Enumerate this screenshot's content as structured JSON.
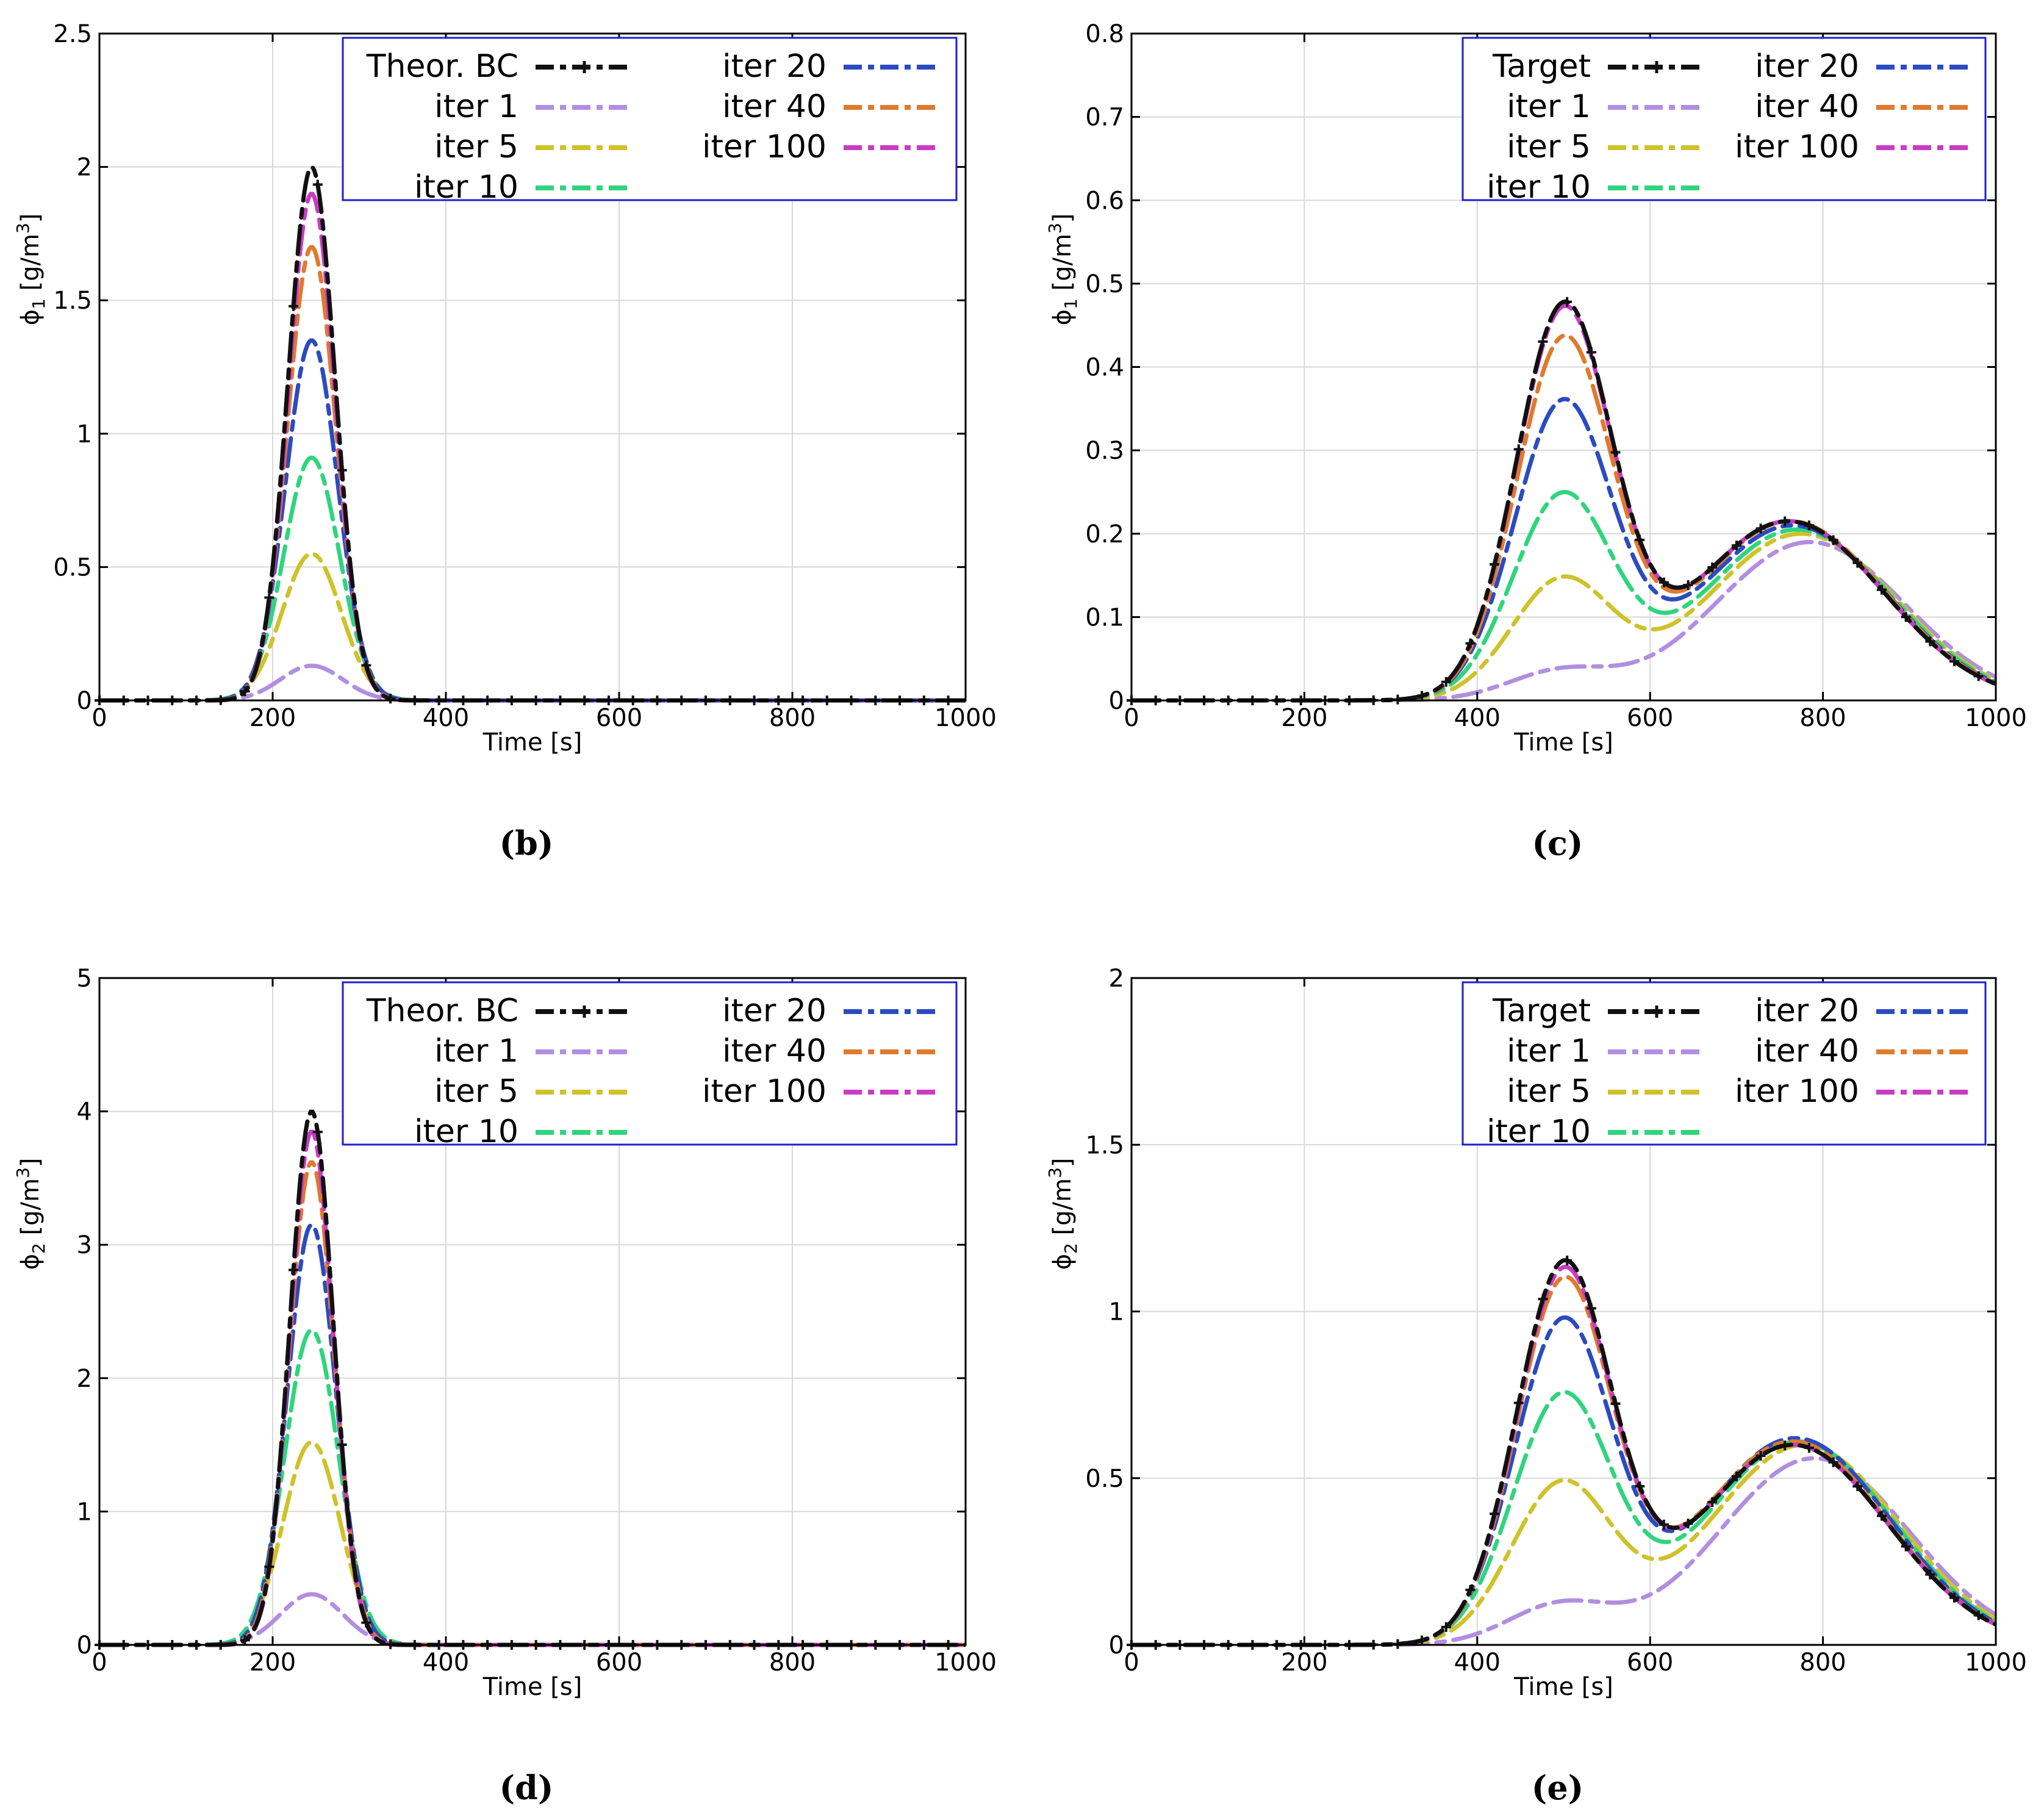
{
  "colors": {
    "theor": "#111111",
    "iter1": "#b28ee0",
    "iter5": "#cfc22a",
    "iter10": "#2fd57d",
    "iter20": "#2b4bc0",
    "iter40": "#e07a2c",
    "iter100": "#c93cc3",
    "legend_border": "#1f1fd0",
    "grid": "#d8d8d8",
    "axis": "#000000"
  },
  "chart_data": [
    {
      "id": "b",
      "type": "line",
      "caption": "(b)",
      "xlabel": "Time [s]",
      "ylabel_main": "ϕ",
      "ylabel_sub": "1",
      "ylabel_unit": " [g/m",
      "ylabel_sup": "3",
      "ylabel_close": "]",
      "xlim": [
        0,
        1000
      ],
      "ylim": [
        0,
        2.5
      ],
      "xticks": [
        0,
        200,
        400,
        600,
        800,
        1000
      ],
      "xtick_labels": [
        "0",
        "200",
        "400",
        "600",
        "800",
        "1000"
      ],
      "yticks": [
        0,
        0.5,
        1,
        1.5,
        2,
        2.5
      ],
      "ytick_labels": [
        "0",
        "0.5",
        "1",
        "1.5",
        "2",
        "2.5"
      ],
      "legend": [
        "Theor. BC",
        "iter 1",
        "iter 5",
        "iter 10",
        "iter 20",
        "iter 40",
        "iter 100"
      ],
      "series": [
        {
          "name": "Theor. BC",
          "key": "theor",
          "markers": true,
          "peaks": [
            {
              "center": 245,
              "amp": 2.0,
              "sigma": 27
            }
          ]
        },
        {
          "name": "iter 1",
          "key": "iter1",
          "peaks": [
            {
              "center": 245,
              "amp": 0.13,
              "sigma": 36
            }
          ]
        },
        {
          "name": "iter 5",
          "key": "iter5",
          "peaks": [
            {
              "center": 245,
              "amp": 0.55,
              "sigma": 34
            }
          ]
        },
        {
          "name": "iter 10",
          "key": "iter10",
          "peaks": [
            {
              "center": 245,
              "amp": 0.91,
              "sigma": 32
            }
          ]
        },
        {
          "name": "iter 20",
          "key": "iter20",
          "peaks": [
            {
              "center": 245,
              "amp": 1.35,
              "sigma": 30
            }
          ]
        },
        {
          "name": "iter 40",
          "key": "iter40",
          "peaks": [
            {
              "center": 245,
              "amp": 1.7,
              "sigma": 28
            }
          ]
        },
        {
          "name": "iter 100",
          "key": "iter100",
          "peaks": [
            {
              "center": 245,
              "amp": 1.9,
              "sigma": 27
            }
          ]
        }
      ]
    },
    {
      "id": "c",
      "type": "line",
      "caption": "(c)",
      "xlabel": "Time [s]",
      "ylabel_main": "ϕ",
      "ylabel_sub": "1",
      "ylabel_unit": " [g/m",
      "ylabel_sup": "3",
      "ylabel_close": "]",
      "xlim": [
        0,
        1000
      ],
      "ylim": [
        0,
        0.8
      ],
      "xticks": [
        0,
        200,
        400,
        600,
        800,
        1000
      ],
      "xtick_labels": [
        "0",
        "200",
        "400",
        "600",
        "800",
        "1000"
      ],
      "yticks": [
        0,
        0.1,
        0.2,
        0.3,
        0.4,
        0.5,
        0.6,
        0.7,
        0.8
      ],
      "ytick_labels": [
        "0",
        "0.1",
        "0.2",
        "0.3",
        "0.4",
        "0.5",
        "0.6",
        "0.7",
        "0.8"
      ],
      "legend": [
        "Target",
        "iter 1",
        "iter 5",
        "iter 10",
        "iter 20",
        "iter 40",
        "iter 100"
      ],
      "series": [
        {
          "name": "Target",
          "key": "theor",
          "markers": true,
          "peaks": [
            {
              "center": 500,
              "amp": 0.465,
              "sigma": 55
            },
            {
              "center": 760,
              "amp": 0.215,
              "sigma": 110
            }
          ]
        },
        {
          "name": "iter 1",
          "key": "iter1",
          "peaks": [
            {
              "center": 495,
              "amp": 0.033,
              "sigma": 60
            },
            {
              "center": 785,
              "amp": 0.19,
              "sigma": 110
            }
          ]
        },
        {
          "name": "iter 5",
          "key": "iter5",
          "peaks": [
            {
              "center": 497,
              "amp": 0.14,
              "sigma": 58
            },
            {
              "center": 775,
              "amp": 0.2,
              "sigma": 110
            }
          ]
        },
        {
          "name": "iter 10",
          "key": "iter10",
          "peaks": [
            {
              "center": 498,
              "amp": 0.24,
              "sigma": 57
            },
            {
              "center": 770,
              "amp": 0.205,
              "sigma": 110
            }
          ]
        },
        {
          "name": "iter 20",
          "key": "iter20",
          "peaks": [
            {
              "center": 499,
              "amp": 0.35,
              "sigma": 56
            },
            {
              "center": 765,
              "amp": 0.21,
              "sigma": 110
            }
          ]
        },
        {
          "name": "iter 40",
          "key": "iter40",
          "peaks": [
            {
              "center": 500,
              "amp": 0.425,
              "sigma": 55
            },
            {
              "center": 762,
              "amp": 0.215,
              "sigma": 110
            }
          ]
        },
        {
          "name": "iter 100",
          "key": "iter100",
          "peaks": [
            {
              "center": 500,
              "amp": 0.46,
              "sigma": 55
            },
            {
              "center": 760,
              "amp": 0.215,
              "sigma": 110
            }
          ]
        }
      ]
    },
    {
      "id": "d",
      "type": "line",
      "caption": "(d)",
      "xlabel": "Time [s]",
      "ylabel_main": "ϕ",
      "ylabel_sub": "2",
      "ylabel_unit": " [g/m",
      "ylabel_sup": "3",
      "ylabel_close": "]",
      "xlim": [
        0,
        1000
      ],
      "ylim": [
        0,
        5
      ],
      "xticks": [
        0,
        200,
        400,
        600,
        800,
        1000
      ],
      "xtick_labels": [
        "0",
        "200",
        "400",
        "600",
        "800",
        "1000"
      ],
      "yticks": [
        0,
        1,
        2,
        3,
        4,
        5
      ],
      "ytick_labels": [
        "0",
        "1",
        "2",
        "3",
        "4",
        "5"
      ],
      "legend": [
        "Theor. BC",
        "iter 1",
        "iter 5",
        "iter 10",
        "iter 20",
        "iter 40",
        "iter 100"
      ],
      "series": [
        {
          "name": "Theor. BC",
          "key": "theor",
          "markers": true,
          "peaks": [
            {
              "center": 245,
              "amp": 4.0,
              "sigma": 25
            }
          ]
        },
        {
          "name": "iter 1",
          "key": "iter1",
          "peaks": [
            {
              "center": 245,
              "amp": 0.38,
              "sigma": 36
            }
          ]
        },
        {
          "name": "iter 5",
          "key": "iter5",
          "peaks": [
            {
              "center": 245,
              "amp": 1.52,
              "sigma": 33
            }
          ]
        },
        {
          "name": "iter 10",
          "key": "iter10",
          "peaks": [
            {
              "center": 245,
              "amp": 2.36,
              "sigma": 31
            }
          ]
        },
        {
          "name": "iter 20",
          "key": "iter20",
          "peaks": [
            {
              "center": 245,
              "amp": 3.15,
              "sigma": 28
            }
          ]
        },
        {
          "name": "iter 40",
          "key": "iter40",
          "peaks": [
            {
              "center": 245,
              "amp": 3.62,
              "sigma": 26
            }
          ]
        },
        {
          "name": "iter 100",
          "key": "iter100",
          "peaks": [
            {
              "center": 245,
              "amp": 3.85,
              "sigma": 25
            }
          ]
        }
      ]
    },
    {
      "id": "e",
      "type": "line",
      "caption": "(e)",
      "xlabel": "Time [s]",
      "ylabel_main": "ϕ",
      "ylabel_sub": "2",
      "ylabel_unit": " [g/m",
      "ylabel_sup": "3",
      "ylabel_close": "]",
      "xlim": [
        0,
        1000
      ],
      "ylim": [
        0,
        2
      ],
      "xticks": [
        0,
        200,
        400,
        600,
        800,
        1000
      ],
      "xtick_labels": [
        "0",
        "200",
        "400",
        "600",
        "800",
        "1000"
      ],
      "yticks": [
        0,
        0.5,
        1,
        1.5,
        2
      ],
      "ytick_labels": [
        "0",
        "0.5",
        "1",
        "1.5",
        "2"
      ],
      "legend": [
        "Target",
        "iter 1",
        "iter 5",
        "iter 10",
        "iter 20",
        "iter 40",
        "iter 100"
      ],
      "series": [
        {
          "name": "Target",
          "key": "theor",
          "markers": true,
          "peaks": [
            {
              "center": 500,
              "amp": 1.12,
              "sigma": 55
            },
            {
              "center": 765,
              "amp": 0.6,
              "sigma": 110
            }
          ]
        },
        {
          "name": "iter 1",
          "key": "iter1",
          "peaks": [
            {
              "center": 495,
              "amp": 0.115,
              "sigma": 60
            },
            {
              "center": 790,
              "amp": 0.56,
              "sigma": 110
            }
          ]
        },
        {
          "name": "iter 5",
          "key": "iter5",
          "peaks": [
            {
              "center": 497,
              "amp": 0.47,
              "sigma": 58
            },
            {
              "center": 778,
              "amp": 0.6,
              "sigma": 110
            }
          ]
        },
        {
          "name": "iter 10",
          "key": "iter10",
          "peaks": [
            {
              "center": 498,
              "amp": 0.73,
              "sigma": 57
            },
            {
              "center": 772,
              "amp": 0.61,
              "sigma": 110
            }
          ]
        },
        {
          "name": "iter 20",
          "key": "iter20",
          "peaks": [
            {
              "center": 499,
              "amp": 0.95,
              "sigma": 56
            },
            {
              "center": 768,
              "amp": 0.62,
              "sigma": 110
            }
          ]
        },
        {
          "name": "iter 40",
          "key": "iter40",
          "peaks": [
            {
              "center": 500,
              "amp": 1.07,
              "sigma": 55
            },
            {
              "center": 765,
              "amp": 0.61,
              "sigma": 110
            }
          ]
        },
        {
          "name": "iter 100",
          "key": "iter100",
          "peaks": [
            {
              "center": 500,
              "amp": 1.1,
              "sigma": 55
            },
            {
              "center": 765,
              "amp": 0.6,
              "sigma": 110
            }
          ]
        }
      ]
    }
  ]
}
